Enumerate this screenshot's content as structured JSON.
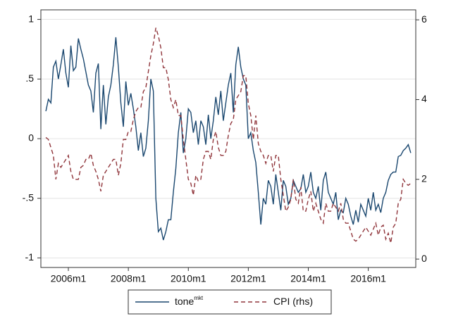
{
  "chart_data": {
    "type": "line",
    "x": [
      "2005m4",
      "2005m5",
      "2005m6",
      "2005m7",
      "2005m8",
      "2005m9",
      "2005m10",
      "2005m11",
      "2005m12",
      "2006m1",
      "2006m2",
      "2006m3",
      "2006m4",
      "2006m5",
      "2006m6",
      "2006m7",
      "2006m8",
      "2006m9",
      "2006m10",
      "2006m11",
      "2006m12",
      "2007m1",
      "2007m2",
      "2007m3",
      "2007m4",
      "2007m5",
      "2007m6",
      "2007m7",
      "2007m8",
      "2007m9",
      "2007m10",
      "2007m11",
      "2007m12",
      "2008m1",
      "2008m2",
      "2008m3",
      "2008m4",
      "2008m5",
      "2008m6",
      "2008m7",
      "2008m8",
      "2008m9",
      "2008m10",
      "2008m11",
      "2008m12",
      "2009m1",
      "2009m2",
      "2009m3",
      "2009m4",
      "2009m5",
      "2009m6",
      "2009m7",
      "2009m8",
      "2009m9",
      "2009m10",
      "2009m11",
      "2009m12",
      "2010m1",
      "2010m2",
      "2010m3",
      "2010m4",
      "2010m5",
      "2010m6",
      "2010m7",
      "2010m8",
      "2010m9",
      "2010m10",
      "2010m11",
      "2010m12",
      "2011m1",
      "2011m2",
      "2011m3",
      "2011m4",
      "2011m5",
      "2011m6",
      "2011m7",
      "2011m8",
      "2011m9",
      "2011m10",
      "2011m11",
      "2011m12",
      "2012m1",
      "2012m2",
      "2012m3",
      "2012m4",
      "2012m5",
      "2012m6",
      "2012m7",
      "2012m8",
      "2012m9",
      "2012m10",
      "2012m11",
      "2012m12",
      "2013m1",
      "2013m2",
      "2013m3",
      "2013m4",
      "2013m5",
      "2013m6",
      "2013m7",
      "2013m8",
      "2013m9",
      "2013m10",
      "2013m11",
      "2013m12",
      "2014m1",
      "2014m2",
      "2014m3",
      "2014m4",
      "2014m5",
      "2014m6",
      "2014m7",
      "2014m8",
      "2014m9",
      "2014m10",
      "2014m11",
      "2014m12",
      "2015m1",
      "2015m2",
      "2015m3",
      "2015m4",
      "2015m5",
      "2015m6",
      "2015m7",
      "2015m8",
      "2015m9",
      "2015m10",
      "2015m11",
      "2015m12",
      "2016m1",
      "2016m2",
      "2016m3",
      "2016m4",
      "2016m5",
      "2016m6",
      "2016m7",
      "2016m8",
      "2016m9",
      "2016m10",
      "2016m11",
      "2016m12",
      "2017m1",
      "2017m2",
      "2017m3",
      "2017m4",
      "2017m5",
      "2017m6"
    ],
    "series": [
      {
        "name": "tone",
        "name_superscript": "mkt",
        "color": "#1a476f",
        "dash": "none",
        "axis": "y",
        "values": [
          0.23,
          0.33,
          0.3,
          0.6,
          0.65,
          0.5,
          0.62,
          0.75,
          0.55,
          0.43,
          0.78,
          0.57,
          0.6,
          0.84,
          0.75,
          0.67,
          0.56,
          0.45,
          0.4,
          0.22,
          0.55,
          0.63,
          0.08,
          0.45,
          0.12,
          0.35,
          0.45,
          0.62,
          0.85,
          0.6,
          0.3,
          0.1,
          0.48,
          0.28,
          0.38,
          0.25,
          0.1,
          -0.1,
          0.05,
          -0.15,
          -0.08,
          0.15,
          0.5,
          0.4,
          -0.5,
          -0.78,
          -0.75,
          -0.85,
          -0.78,
          -0.68,
          -0.68,
          -0.45,
          -0.25,
          0.05,
          0.22,
          -0.12,
          0.0,
          0.25,
          0.22,
          0.05,
          0.15,
          -0.05,
          0.15,
          0.1,
          -0.05,
          0.2,
          0.0,
          0.15,
          0.35,
          0.2,
          0.4,
          0.15,
          0.3,
          0.45,
          0.55,
          0.22,
          0.62,
          0.77,
          0.6,
          0.5,
          0.45,
          0.0,
          0.05,
          -0.1,
          -0.2,
          -0.45,
          -0.72,
          -0.5,
          -0.55,
          -0.35,
          -0.4,
          -0.55,
          -0.3,
          -0.45,
          -0.6,
          -0.35,
          -0.4,
          -0.55,
          -0.5,
          -0.35,
          -0.4,
          -0.45,
          -0.42,
          -0.3,
          -0.45,
          -0.4,
          -0.28,
          -0.45,
          -0.5,
          -0.4,
          -0.6,
          -0.35,
          -0.28,
          -0.45,
          -0.5,
          -0.55,
          -0.45,
          -0.68,
          -0.6,
          -0.62,
          -0.5,
          -0.55,
          -0.65,
          -0.72,
          -0.6,
          -0.7,
          -0.55,
          -0.6,
          -0.65,
          -0.5,
          -0.6,
          -0.45,
          -0.6,
          -0.55,
          -0.62,
          -0.5,
          -0.45,
          -0.35,
          -0.3,
          -0.28,
          -0.28,
          -0.15,
          -0.14,
          -0.1,
          -0.08,
          -0.05,
          -0.12
        ]
      },
      {
        "name": "CPI (rhs)",
        "color": "#90353b",
        "dash": "6,4",
        "axis": "y2",
        "values": [
          3.05,
          3.0,
          2.8,
          2.6,
          2.0,
          2.4,
          2.3,
          2.4,
          2.5,
          2.6,
          2.2,
          2.0,
          2.0,
          2.0,
          2.3,
          2.35,
          2.5,
          2.5,
          2.65,
          2.35,
          2.2,
          2.0,
          1.7,
          2.1,
          2.2,
          2.3,
          2.4,
          2.5,
          2.5,
          2.1,
          2.4,
          3.0,
          3.0,
          3.2,
          3.2,
          3.5,
          3.7,
          3.8,
          3.8,
          4.2,
          4.3,
          4.7,
          5.1,
          5.4,
          5.8,
          5.6,
          5.3,
          4.8,
          4.8,
          4.5,
          4.0,
          3.8,
          4.0,
          3.6,
          3.6,
          3.0,
          2.5,
          2.0,
          1.9,
          1.6,
          2.1,
          1.95,
          2.0,
          2.5,
          2.7,
          2.7,
          2.5,
          3.0,
          3.2,
          2.8,
          2.6,
          2.6,
          2.7,
          3.1,
          3.4,
          3.5,
          4.0,
          4.1,
          4.2,
          4.6,
          4.6,
          3.9,
          3.6,
          3.0,
          3.6,
          2.9,
          2.7,
          2.6,
          2.4,
          2.6,
          2.6,
          2.2,
          2.6,
          2.6,
          2.0,
          1.6,
          1.2,
          1.3,
          1.5,
          2.0,
          1.5,
          1.4,
          1.8,
          1.2,
          1.2,
          1.5,
          1.7,
          1.2,
          1.4,
          1.2,
          1.0,
          0.9,
          1.4,
          1.2,
          1.2,
          1.4,
          1.3,
          1.2,
          1.4,
          1.0,
          0.9,
          0.9,
          0.7,
          0.5,
          0.45,
          0.5,
          0.6,
          0.7,
          0.8,
          0.7,
          0.6,
          0.75,
          0.9,
          0.6,
          0.8,
          0.85,
          0.5,
          0.65,
          0.4,
          0.8,
          0.9,
          1.4,
          1.5,
          2.0,
          1.9,
          1.85,
          1.9
        ]
      }
    ],
    "xlim": [
      "2005m2",
      "2017m8"
    ],
    "xticks": [
      "2006m1",
      "2008m1",
      "2010m1",
      "2012m1",
      "2014m1",
      "2016m1"
    ],
    "ylim": [
      -1.08,
      1.08
    ],
    "yticks": [
      -1,
      {
        "value": -0.5,
        "label": "-.5"
      },
      0,
      {
        "value": 0.5,
        "label": ".5"
      },
      1
    ],
    "y2lim": [
      -0.21,
      6.25
    ],
    "y2ticks": [
      0,
      2,
      4,
      6
    ],
    "grid": true,
    "legend": "bottom"
  }
}
